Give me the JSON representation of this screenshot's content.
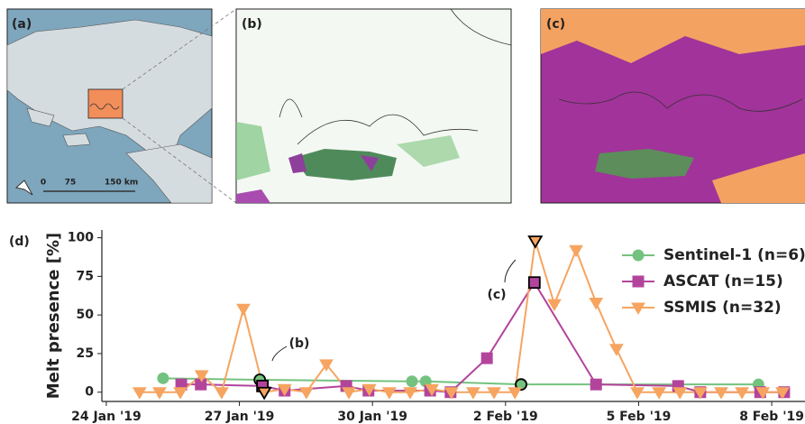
{
  "panels": {
    "a": {
      "label": "(a)",
      "scale_ticks": [
        "0",
        "75",
        "150 km"
      ]
    },
    "b": {
      "label": "(b)"
    },
    "c": {
      "label": "(c)"
    }
  },
  "chart_data": {
    "type": "line",
    "panel_label": "(d)",
    "ylabel": "Melt presence [%]",
    "xlim": [
      23.9,
      39.75
    ],
    "xticks": [
      {
        "value": 24,
        "label": "24 Jan '19"
      },
      {
        "value": 27,
        "label": "27 Jan '19"
      },
      {
        "value": 30,
        "label": "30 Jan '19"
      },
      {
        "value": 33,
        "label": "2 Feb '19"
      },
      {
        "value": 36,
        "label": "5 Feb '19"
      },
      {
        "value": 39,
        "label": "8 Feb '19"
      }
    ],
    "ylim": [
      -6,
      105
    ],
    "yticks": [
      0,
      25,
      50,
      75,
      100
    ],
    "grid": false,
    "legend": "upper right",
    "annotations": [
      {
        "text": "(b)"
      },
      {
        "text": "(c)"
      }
    ],
    "series": [
      {
        "name": "Sentinel-1 (n=6)",
        "color": "#74c27f",
        "marker": "circle",
        "x": [
          25.28,
          27.46,
          30.89,
          31.2,
          33.35,
          38.7
        ],
        "values": [
          9,
          8,
          7,
          7,
          5,
          5
        ],
        "highlighted": [
          1,
          4
        ]
      },
      {
        "name": "ASCAT (n=15)",
        "color": "#b3449c",
        "marker": "square",
        "x": [
          25.69,
          26.13,
          27.52,
          28.02,
          29.41,
          29.91,
          31.3,
          31.76,
          32.58,
          33.65,
          35.04,
          36.89,
          37.39,
          38.74,
          39.28
        ],
        "values": [
          5,
          5,
          4,
          1,
          4,
          1,
          1,
          0,
          22,
          71,
          5,
          4,
          0,
          0,
          0
        ],
        "highlighted": [
          2,
          9
        ]
      },
      {
        "name": "SSMIS (n=32)",
        "color": "#f6a460",
        "marker": "triangle",
        "x": [
          24.75,
          25.2,
          25.67,
          26.15,
          26.6,
          27.09,
          27.56,
          28.02,
          28.51,
          28.96,
          29.47,
          29.93,
          30.38,
          30.85,
          31.34,
          31.78,
          32.27,
          32.74,
          33.21,
          33.67,
          34.1,
          34.59,
          35.04,
          35.5,
          35.97,
          36.46,
          36.93,
          37.39,
          37.86,
          38.33,
          38.8,
          39.24
        ],
        "values": [
          0,
          0,
          0,
          11,
          0,
          54,
          0,
          2,
          0,
          18,
          0,
          2,
          0,
          0,
          2,
          0,
          0,
          0,
          0,
          98,
          57,
          92,
          58,
          28,
          0,
          0,
          0,
          0,
          0,
          0,
          0,
          0
        ],
        "highlighted": [
          6,
          19
        ]
      }
    ]
  }
}
